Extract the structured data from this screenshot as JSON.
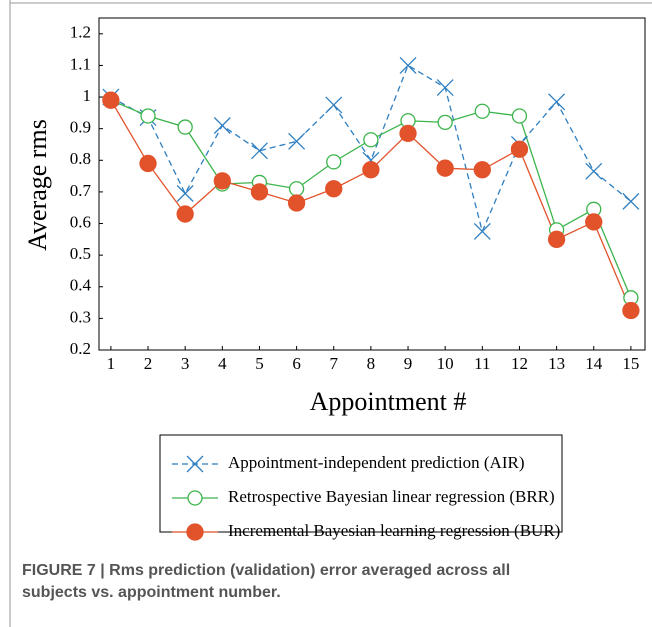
{
  "chart_data": {
    "type": "line",
    "xlabel": "Appointment #",
    "ylabel": "Average rms",
    "x": [
      1,
      2,
      3,
      4,
      5,
      6,
      7,
      8,
      9,
      10,
      11,
      12,
      13,
      14,
      15
    ],
    "xlim": [
      0.68,
      15.38
    ],
    "xticks": [
      1,
      2,
      3,
      4,
      5,
      6,
      7,
      8,
      9,
      10,
      11,
      12,
      13,
      14,
      15
    ],
    "ylim": [
      0.2,
      1.25
    ],
    "yticks": [
      0.2,
      0.3,
      0.4,
      0.5,
      0.6,
      0.7,
      0.8,
      0.9,
      1,
      1.1,
      1.2
    ],
    "grid": false,
    "series": [
      {
        "name": "Appointment-independent prediction (AIR)",
        "color": "#2f7fc1",
        "marker": "cross",
        "dashed": true,
        "values": [
          1.0,
          0.935,
          0.695,
          0.91,
          0.83,
          0.86,
          0.975,
          0.8,
          1.1,
          1.03,
          0.575,
          0.85,
          0.985,
          0.765,
          0.67
        ]
      },
      {
        "name": "Retrospective Bayesian linear regression (BRR)",
        "color": "#3cb44b",
        "marker": "open-circle",
        "dashed": false,
        "values": [
          0.99,
          0.94,
          0.905,
          0.725,
          0.73,
          0.71,
          0.795,
          0.865,
          0.925,
          0.92,
          0.955,
          0.94,
          0.58,
          0.645,
          0.365
        ]
      },
      {
        "name": "Incremental Bayesian learning regression (BUR)",
        "color": "#e2522b",
        "marker": "filled-circle",
        "dashed": false,
        "values": [
          0.99,
          0.79,
          0.63,
          0.735,
          0.7,
          0.665,
          0.71,
          0.77,
          0.885,
          0.775,
          0.77,
          0.835,
          0.55,
          0.605,
          0.325
        ]
      }
    ]
  },
  "caption": "FIGURE 7 | Rms prediction (validation) error averaged across all subjects vs. appointment number."
}
